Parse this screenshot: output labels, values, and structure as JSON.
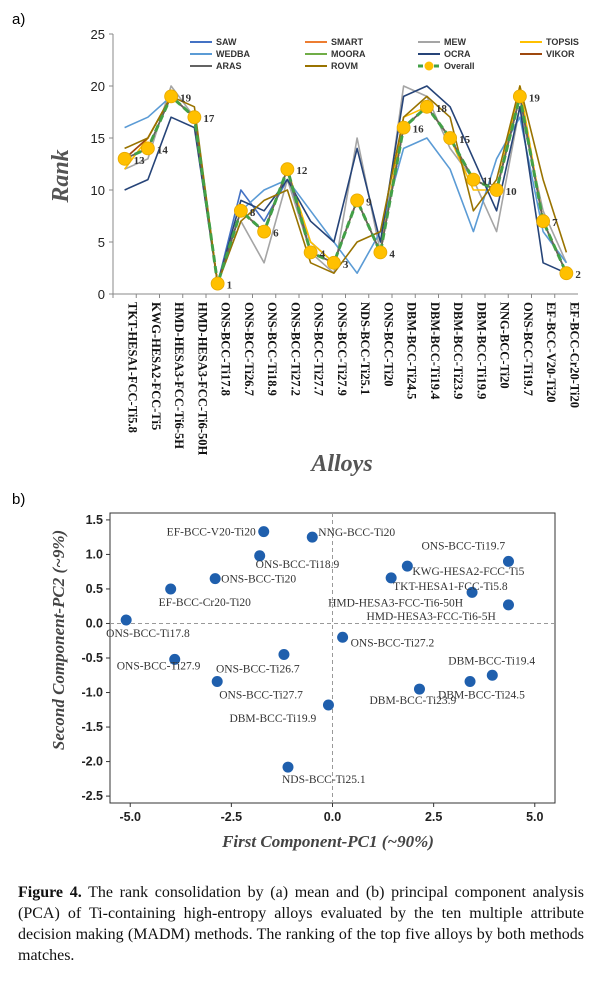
{
  "panel_a_label": "a)",
  "panel_b_label": "b)",
  "caption": {
    "prefix": "Figure 4.",
    "text": " The rank consolidation by (a) mean and (b) principal component analysis (PCA) of Ti-containing high-entropy alloys evaluated by the ten multiple attribute decision making (MADM) methods. The ranking of the top five alloys by both methods matches."
  },
  "chart_data": [
    {
      "type": "line",
      "xlabel": "Alloys",
      "ylabel": "Rank",
      "ylim": [
        0,
        25
      ],
      "yticks": [
        0,
        5,
        10,
        15,
        20,
        25
      ],
      "grid": false,
      "legend_placement": "top",
      "categories": [
        "TKT-HESA1-FCC-Ti5.8",
        "KWG-HESA2-FCC-Ti5",
        "HMD-HESA3-FCC-Ti6-5H",
        "HMD-HESA3-FCC-Ti6-50H",
        "ONS-BCC-Ti17.8",
        "ONS-BCC-Ti26.7",
        "ONS-BCC-Ti18.9",
        "ONS-BCC-Ti27.2",
        "ONS-BCC-Ti27.7",
        "ONS-BCC-Ti27.9",
        "NDS-BCC-Ti25.1",
        "ONS-BCC-Ti20",
        "DBM-BCC-Ti24.5",
        "DBM-BCC-Ti19.4",
        "DBM-BCC-Ti23.9",
        "DBM-BCC-Ti19.9",
        "NNG-BCC-Ti20",
        "ONS-BCC-Ti19.7",
        "EF-BCC-V20-Ti20",
        "EF-BCC-Cr20-Ti20"
      ],
      "series": [
        {
          "name": "SAW",
          "color": "#4472C4",
          "values": [
            13,
            14,
            19,
            17,
            1,
            10,
            7,
            11,
            5,
            3,
            9,
            4,
            16,
            18,
            15,
            11,
            10,
            19,
            7,
            2
          ]
        },
        {
          "name": "SMART",
          "color": "#ED7D31",
          "values": [
            13,
            15,
            19,
            17,
            1,
            8,
            6,
            12,
            4,
            3,
            9,
            4,
            16,
            18,
            15,
            11,
            10,
            19,
            7,
            2
          ]
        },
        {
          "name": "MEW",
          "color": "#A5A5A5",
          "values": [
            12,
            13,
            20,
            17,
            1,
            7,
            3,
            11,
            4,
            2,
            15,
            4,
            20,
            19,
            14,
            11,
            6,
            18,
            8,
            3
          ]
        },
        {
          "name": "TOPSIS",
          "color": "#FFC000",
          "values": [
            12,
            15,
            19,
            17,
            1,
            8,
            6,
            12,
            5,
            3,
            9,
            4,
            17,
            18,
            15,
            10,
            10,
            20,
            7,
            2
          ]
        },
        {
          "name": "WEDBA",
          "color": "#5B9BD5",
          "values": [
            16,
            17,
            19,
            17,
            1,
            8,
            10,
            11,
            8,
            5,
            2,
            6,
            14,
            15,
            12,
            6,
            13,
            17,
            6,
            3
          ]
        },
        {
          "name": "MOORA",
          "color": "#70AD47",
          "values": [
            13,
            14,
            19,
            17,
            1,
            8,
            6,
            12,
            4,
            3,
            9,
            4,
            16,
            18,
            15,
            11,
            10,
            19,
            7,
            2
          ]
        },
        {
          "name": "OCRA",
          "color": "#264478",
          "values": [
            10,
            11,
            17,
            16,
            1,
            9,
            8,
            11,
            7,
            5,
            14,
            5,
            19,
            20,
            18,
            13,
            8,
            18,
            3,
            2
          ]
        },
        {
          "name": "VIKOR",
          "color": "#9E480E",
          "values": [
            13,
            15,
            19,
            17,
            1,
            8,
            6,
            12,
            4,
            3,
            9,
            4,
            16,
            18,
            15,
            11,
            10,
            19,
            7,
            2
          ]
        },
        {
          "name": "ARAS",
          "color": "#636363",
          "values": [
            13,
            14,
            19,
            17,
            1,
            8,
            6,
            12,
            4,
            3,
            9,
            4,
            16,
            18,
            15,
            11,
            10,
            19,
            7,
            2
          ]
        },
        {
          "name": "ROVM",
          "color": "#997300",
          "values": [
            14,
            15,
            19,
            18,
            1,
            7,
            9,
            10,
            3,
            2,
            5,
            6,
            17,
            19,
            17,
            8,
            11,
            20,
            11,
            4
          ]
        },
        {
          "name": "Overall",
          "color": "#43A047",
          "marker_color": "#FFC000",
          "values": [
            13,
            14,
            19,
            17,
            1,
            8,
            6,
            12,
            4,
            3,
            9,
            4,
            16,
            18,
            15,
            11,
            10,
            19,
            7,
            2
          ]
        }
      ],
      "data_labels": [
        "13",
        "14",
        "19",
        "17",
        "1",
        "8",
        "6",
        "12",
        "4",
        "3",
        "9",
        "4",
        "16",
        "18",
        "15",
        "11",
        "10",
        "19",
        "7",
        "2"
      ]
    },
    {
      "type": "scatter",
      "xlabel": "First Component-PC1 (~90%)",
      "ylabel": "Second Component-PC2 (~9%)",
      "xlim": [
        -5.5,
        5.5
      ],
      "ylim": [
        -2.6,
        1.6
      ],
      "xticks": [
        -5.0,
        -2.5,
        0.0,
        2.5,
        5.0
      ],
      "yticks": [
        1.5,
        1.0,
        0.5,
        0.0,
        -0.5,
        -1.0,
        -1.5,
        -2.0,
        -2.5
      ],
      "grid": false,
      "point_color": "#1F5FAD",
      "points": [
        {
          "label": "EF-BCC-V20-Ti20",
          "x": -1.7,
          "y": 1.33
        },
        {
          "label": "NNG-BCC-Ti20",
          "x": -0.5,
          "y": 1.25
        },
        {
          "label": "ONS-BCC-Ti18.9",
          "x": -1.8,
          "y": 0.98
        },
        {
          "label": "ONS-BCC-Ti20",
          "x": -2.9,
          "y": 0.65
        },
        {
          "label": "EF-BCC-Cr20-Ti20",
          "x": -4.0,
          "y": 0.5
        },
        {
          "label": "ONS-BCC-Ti17.8",
          "x": -5.1,
          "y": 0.05
        },
        {
          "label": "ONS-BCC-Ti19.7",
          "x": 4.35,
          "y": 0.9
        },
        {
          "label": "KWG-HESA2-FCC-Ti5",
          "x": 1.85,
          "y": 0.83
        },
        {
          "label": "TKT-HESA1-FCC-Ti5.8",
          "x": 1.45,
          "y": 0.66
        },
        {
          "label": "HMD-HESA3-FCC-Ti6-50H",
          "x": 3.45,
          "y": 0.45
        },
        {
          "label": "HMD-HESA3-FCC-Ti6-5H",
          "x": 4.35,
          "y": 0.27
        },
        {
          "label": "ONS-BCC-Ti27.2",
          "x": 0.25,
          "y": -0.2
        },
        {
          "label": "ONS-BCC-Ti27.9",
          "x": -3.9,
          "y": -0.52
        },
        {
          "label": "ONS-BCC-Ti26.7",
          "x": -1.2,
          "y": -0.45
        },
        {
          "label": "ONS-BCC-Ti27.7",
          "x": -2.85,
          "y": -0.84
        },
        {
          "label": "DBM-BCC-Ti19.9",
          "x": -0.1,
          "y": -1.18
        },
        {
          "label": "DBM-BCC-Ti19.4",
          "x": 3.95,
          "y": -0.75
        },
        {
          "label": "DBM-BCC-Ti24.5",
          "x": 3.4,
          "y": -0.84
        },
        {
          "label": "DBM-BCC-Ti23.9",
          "x": 2.15,
          "y": -0.95
        },
        {
          "label": "NDS-BCC-Ti25.1",
          "x": -1.1,
          "y": -2.08
        }
      ]
    }
  ]
}
